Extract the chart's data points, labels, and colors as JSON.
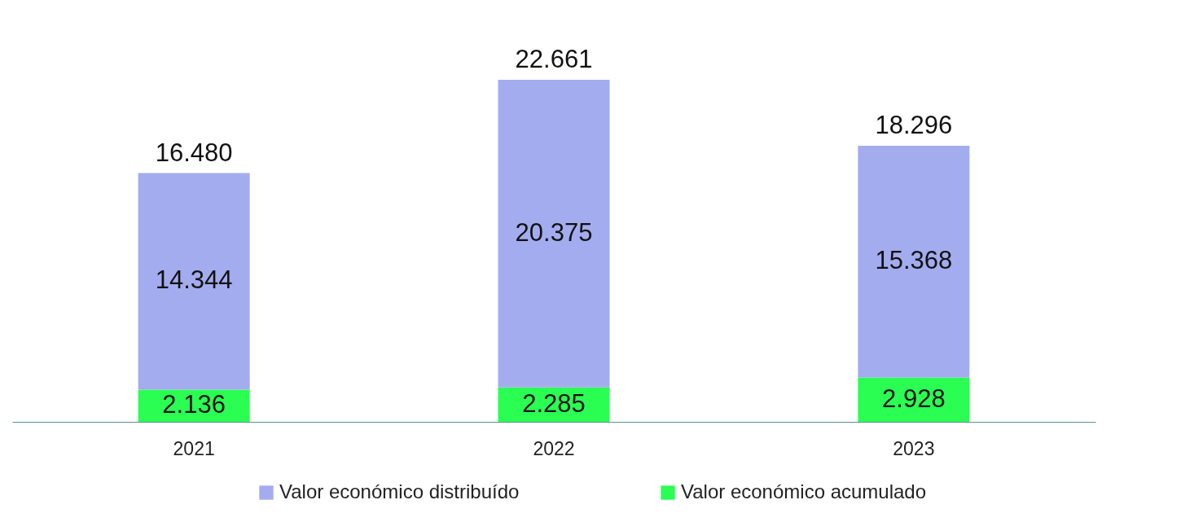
{
  "chart_data": {
    "type": "bar",
    "stacked": true,
    "categories": [
      "2021",
      "2022",
      "2023"
    ],
    "series": [
      {
        "name": "Valor económico acumulado",
        "color": "#2afe52",
        "values": [
          2136,
          2285,
          2928
        ],
        "value_labels": [
          "2.136",
          "2.285",
          "2.928"
        ]
      },
      {
        "name": "Valor económico distribuído",
        "color": "#a3acee",
        "values": [
          14344,
          20375,
          15368
        ],
        "value_labels": [
          "14.344",
          "20.375",
          "15.368"
        ]
      }
    ],
    "totals": [
      "16.480",
      "22.661",
      "18.296"
    ],
    "legend": "bottom",
    "grid": false,
    "tick_labels": "x"
  }
}
